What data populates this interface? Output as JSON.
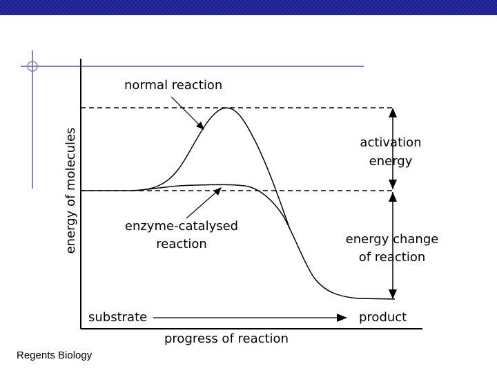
{
  "slide": {
    "footer": "Regents Biology",
    "bar_color": "#1e1e8c",
    "accent_line_color": "#7f7fbf"
  },
  "diagram": {
    "labels": {
      "normal": "normal reaction",
      "activation_1": "activation",
      "activation_2": "energy",
      "enzyme_1": "enzyme-catalysed",
      "enzyme_2": "reaction",
      "change_1": "energy change",
      "change_2": "of reaction",
      "substrate": "substrate",
      "product": "product",
      "xlabel": "progress of reaction",
      "ylabel": "energy of molecules"
    }
  }
}
